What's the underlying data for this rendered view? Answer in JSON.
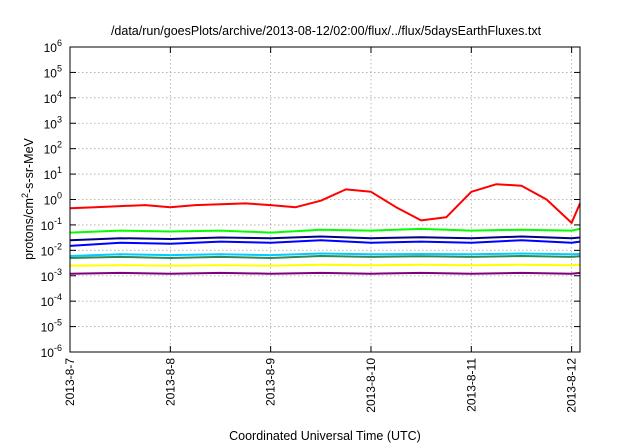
{
  "chart_data": {
    "type": "line",
    "title": "/data/run/goesPlots/archive/2013-08-12/02:00/flux/../flux/5daysEarthFluxes.txt",
    "xlabel": "Coordinated Universal Time (UTC)",
    "ylabel": {
      "base": "protons/cm",
      "sup": "2",
      "rest": "-s-sr-MeV"
    },
    "yscale": "log",
    "ylim": [
      1e-06,
      1000000.0
    ],
    "y_ticks": [
      {
        "value": 1000000.0,
        "base": "10",
        "exp": "6"
      },
      {
        "value": 100000.0,
        "base": "10",
        "exp": "5"
      },
      {
        "value": 10000.0,
        "base": "10",
        "exp": "4"
      },
      {
        "value": 1000.0,
        "base": "10",
        "exp": "3"
      },
      {
        "value": 100.0,
        "base": "10",
        "exp": "2"
      },
      {
        "value": 10.0,
        "base": "10",
        "exp": "1"
      },
      {
        "value": 1.0,
        "base": "10",
        "exp": "0"
      },
      {
        "value": 0.1,
        "base": "10",
        "exp": "-1"
      },
      {
        "value": 0.01,
        "base": "10",
        "exp": "-2"
      },
      {
        "value": 0.001,
        "base": "10",
        "exp": "-3"
      },
      {
        "value": 0.0001,
        "base": "10",
        "exp": "-4"
      },
      {
        "value": 1e-05,
        "base": "10",
        "exp": "-5"
      },
      {
        "value": 1e-06,
        "base": "10",
        "exp": "-6"
      }
    ],
    "xlim": [
      "2013-08-07T00:00",
      "2013-08-12T02:00"
    ],
    "x_ticks": [
      {
        "value": "2013-08-07T00:00",
        "label": "2013-8-7"
      },
      {
        "value": "2013-08-08T00:00",
        "label": "2013-8-8"
      },
      {
        "value": "2013-08-09T00:00",
        "label": "2013-8-9"
      },
      {
        "value": "2013-08-10T00:00",
        "label": "2013-8-10"
      },
      {
        "value": "2013-08-11T00:00",
        "label": "2013-8-11"
      },
      {
        "value": "2013-08-12T00:00",
        "label": "2013-8-12"
      }
    ],
    "grid": true,
    "series": [
      {
        "color": "#ff0000",
        "x": [
          "2013-08-07T00:00",
          "2013-08-07T06:00",
          "2013-08-07T12:00",
          "2013-08-07T18:00",
          "2013-08-08T00:00",
          "2013-08-08T06:00",
          "2013-08-08T12:00",
          "2013-08-08T18:00",
          "2013-08-09T00:00",
          "2013-08-09T06:00",
          "2013-08-09T12:00",
          "2013-08-09T18:00",
          "2013-08-10T00:00",
          "2013-08-10T06:00",
          "2013-08-10T12:00",
          "2013-08-10T18:00",
          "2013-08-11T00:00",
          "2013-08-11T06:00",
          "2013-08-11T12:00",
          "2013-08-11T18:00",
          "2013-08-12T00:00",
          "2013-08-12T02:00"
        ],
        "values": [
          0.45,
          0.5,
          0.55,
          0.6,
          0.5,
          0.6,
          0.65,
          0.7,
          0.6,
          0.5,
          0.9,
          2.5,
          2,
          0.5,
          0.15,
          0.2,
          2,
          4,
          3.5,
          1,
          0.12,
          0.7
        ]
      },
      {
        "color": "#00ff00",
        "x": [
          "2013-08-07T00:00",
          "2013-08-07T12:00",
          "2013-08-08T00:00",
          "2013-08-08T12:00",
          "2013-08-09T00:00",
          "2013-08-09T12:00",
          "2013-08-10T00:00",
          "2013-08-10T12:00",
          "2013-08-11T00:00",
          "2013-08-11T12:00",
          "2013-08-12T00:00",
          "2013-08-12T02:00"
        ],
        "values": [
          0.05,
          0.06,
          0.055,
          0.06,
          0.05,
          0.065,
          0.06,
          0.07,
          0.06,
          0.065,
          0.06,
          0.07
        ]
      },
      {
        "color": "#0000ff",
        "x": [
          "2013-08-07T00:00",
          "2013-08-07T12:00",
          "2013-08-08T00:00",
          "2013-08-08T12:00",
          "2013-08-09T00:00",
          "2013-08-09T12:00",
          "2013-08-10T00:00",
          "2013-08-10T12:00",
          "2013-08-11T00:00",
          "2013-08-11T12:00",
          "2013-08-12T00:00",
          "2013-08-12T02:00"
        ],
        "values": [
          0.015,
          0.02,
          0.018,
          0.022,
          0.02,
          0.025,
          0.02,
          0.022,
          0.02,
          0.025,
          0.02,
          0.022
        ]
      },
      {
        "color": "#00008b",
        "x": [
          "2013-08-07T00:00",
          "2013-08-07T12:00",
          "2013-08-08T00:00",
          "2013-08-08T12:00",
          "2013-08-09T00:00",
          "2013-08-09T12:00",
          "2013-08-10T00:00",
          "2013-08-10T12:00",
          "2013-08-11T00:00",
          "2013-08-11T12:00",
          "2013-08-12T00:00",
          "2013-08-12T02:00"
        ],
        "values": [
          0.025,
          0.03,
          0.028,
          0.032,
          0.03,
          0.035,
          0.03,
          0.033,
          0.03,
          0.035,
          0.03,
          0.032
        ]
      },
      {
        "color": "#00ccff",
        "x": [
          "2013-08-07T00:00",
          "2013-08-07T12:00",
          "2013-08-08T00:00",
          "2013-08-08T12:00",
          "2013-08-09T00:00",
          "2013-08-09T12:00",
          "2013-08-10T00:00",
          "2013-08-10T12:00",
          "2013-08-11T00:00",
          "2013-08-11T12:00",
          "2013-08-12T00:00",
          "2013-08-12T02:00"
        ],
        "values": [
          0.006,
          0.007,
          0.0065,
          0.007,
          0.0065,
          0.0075,
          0.007,
          0.0072,
          0.007,
          0.0075,
          0.007,
          0.0072
        ]
      },
      {
        "color": "#2e8b57",
        "x": [
          "2013-08-07T00:00",
          "2013-08-07T12:00",
          "2013-08-08T00:00",
          "2013-08-08T12:00",
          "2013-08-09T00:00",
          "2013-08-09T12:00",
          "2013-08-10T00:00",
          "2013-08-10T12:00",
          "2013-08-11T00:00",
          "2013-08-11T12:00",
          "2013-08-12T00:00",
          "2013-08-12T02:00"
        ],
        "values": [
          0.005,
          0.0055,
          0.005,
          0.0055,
          0.005,
          0.006,
          0.0055,
          0.0058,
          0.0055,
          0.006,
          0.0055,
          0.0058
        ]
      },
      {
        "color": "#ffff00",
        "x": [
          "2013-08-07T00:00",
          "2013-08-07T12:00",
          "2013-08-08T00:00",
          "2013-08-08T12:00",
          "2013-08-09T00:00",
          "2013-08-09T12:00",
          "2013-08-10T00:00",
          "2013-08-10T12:00",
          "2013-08-11T00:00",
          "2013-08-11T12:00",
          "2013-08-12T00:00",
          "2013-08-12T02:00"
        ],
        "values": [
          0.0025,
          0.0026,
          0.0025,
          0.0026,
          0.0025,
          0.0027,
          0.0026,
          0.0027,
          0.0026,
          0.0027,
          0.0026,
          0.0027
        ]
      },
      {
        "color": "#800080",
        "x": [
          "2013-08-07T00:00",
          "2013-08-07T12:00",
          "2013-08-08T00:00",
          "2013-08-08T12:00",
          "2013-08-09T00:00",
          "2013-08-09T12:00",
          "2013-08-10T00:00",
          "2013-08-10T12:00",
          "2013-08-11T00:00",
          "2013-08-11T12:00",
          "2013-08-12T00:00",
          "2013-08-12T02:00"
        ],
        "values": [
          0.0012,
          0.0013,
          0.0012,
          0.0013,
          0.0012,
          0.0013,
          0.0012,
          0.0013,
          0.0012,
          0.0013,
          0.0012,
          0.0013
        ]
      }
    ]
  }
}
